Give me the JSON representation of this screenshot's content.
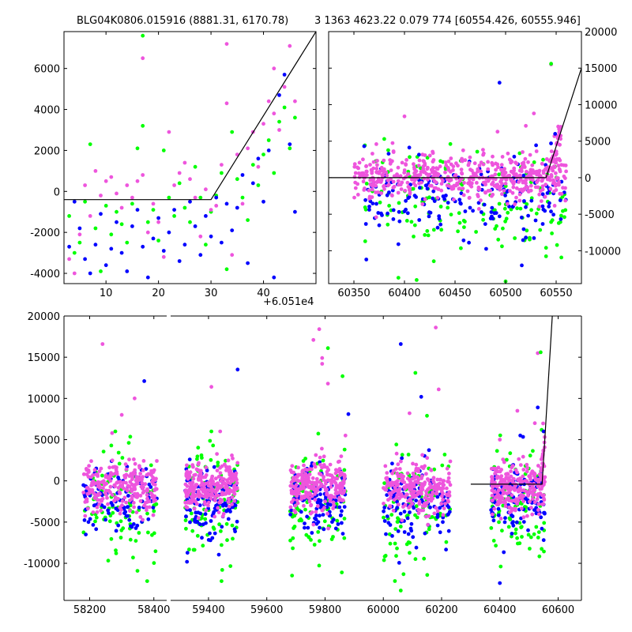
{
  "figure": {
    "title_left": "BLG04K0806.015916 (8881.31, 6170.78)",
    "title_right": "3 1363 4623.22 0.079 774 [60554.426, 60555.946]"
  },
  "colors": {
    "green": "#00ff00",
    "blue": "#0000ff",
    "pink": "#ee55dd",
    "line": "#000000",
    "axis": "#000000"
  },
  "chart_data": [
    {
      "panel": "top-left zoom",
      "type": "scatter",
      "title": "",
      "xlabel": "",
      "ylabel": "",
      "x_offset_label": "+6.051e4",
      "xlim": [
        2,
        50
      ],
      "ylim": [
        -4500,
        7800
      ],
      "xticks": [
        10,
        20,
        30,
        40
      ],
      "yticks": [
        -4000,
        -2000,
        0,
        2000,
        4000,
        6000
      ],
      "ytick_side": "left",
      "series": [
        {
          "color": "green",
          "points": [
            [
              3,
              -1200
            ],
            [
              4,
              -3000
            ],
            [
              5,
              -2500
            ],
            [
              6,
              -500
            ],
            [
              7,
              2300
            ],
            [
              8,
              -1800
            ],
            [
              9,
              -3900
            ],
            [
              10,
              -700
            ],
            [
              11,
              -2100
            ],
            [
              12,
              -1000
            ],
            [
              13,
              -1600
            ],
            [
              14,
              -2500
            ],
            [
              15,
              -600
            ],
            [
              16,
              2100
            ],
            [
              17,
              7600
            ],
            [
              17,
              3200
            ],
            [
              18,
              -1500
            ],
            [
              19,
              -900
            ],
            [
              20,
              -2400
            ],
            [
              21,
              2000
            ],
            [
              22,
              -300
            ],
            [
              23,
              -1200
            ],
            [
              24,
              400
            ],
            [
              25,
              -800
            ],
            [
              26,
              -1500
            ],
            [
              27,
              1200
            ],
            [
              28,
              -300
            ],
            [
              29,
              -2600
            ],
            [
              30,
              -1000
            ],
            [
              31,
              -200
            ],
            [
              32,
              900
            ],
            [
              33,
              -3800
            ],
            [
              34,
              2900
            ],
            [
              35,
              600
            ],
            [
              36,
              -300
            ],
            [
              37,
              -1400
            ],
            [
              38,
              1300
            ],
            [
              39,
              300
            ],
            [
              40,
              1800
            ],
            [
              41,
              2500
            ],
            [
              42,
              900
            ],
            [
              43,
              3400
            ],
            [
              44,
              4100
            ],
            [
              45,
              2100
            ],
            [
              46,
              3600
            ]
          ]
        },
        {
          "color": "blue",
          "points": [
            [
              3,
              -2700
            ],
            [
              4,
              -500
            ],
            [
              5,
              -1800
            ],
            [
              6,
              -3300
            ],
            [
              7,
              -4000
            ],
            [
              8,
              -2600
            ],
            [
              9,
              -1100
            ],
            [
              10,
              -3600
            ],
            [
              11,
              -2800
            ],
            [
              12,
              -1500
            ],
            [
              13,
              -3000
            ],
            [
              14,
              -3900
            ],
            [
              15,
              -1700
            ],
            [
              16,
              -900
            ],
            [
              17,
              -2700
            ],
            [
              18,
              -4200
            ],
            [
              19,
              -2300
            ],
            [
              20,
              -1300
            ],
            [
              21,
              -2900
            ],
            [
              22,
              -2000
            ],
            [
              23,
              -900
            ],
            [
              24,
              -3400
            ],
            [
              25,
              -2600
            ],
            [
              26,
              -500
            ],
            [
              27,
              -1700
            ],
            [
              28,
              -3100
            ],
            [
              29,
              -1200
            ],
            [
              30,
              -2200
            ],
            [
              31,
              -300
            ],
            [
              32,
              -2500
            ],
            [
              33,
              -600
            ],
            [
              34,
              -1900
            ],
            [
              35,
              -800
            ],
            [
              36,
              800
            ],
            [
              37,
              -3500
            ],
            [
              38,
              400
            ],
            [
              39,
              1600
            ],
            [
              40,
              -500
            ],
            [
              41,
              2000
            ],
            [
              42,
              -4200
            ],
            [
              43,
              4700
            ],
            [
              44,
              5700
            ],
            [
              45,
              2300
            ],
            [
              46,
              -1000
            ]
          ]
        },
        {
          "color": "pink",
          "points": [
            [
              3,
              -3300
            ],
            [
              4,
              -4000
            ],
            [
              5,
              -2100
            ],
            [
              6,
              300
            ],
            [
              7,
              -1200
            ],
            [
              8,
              1000
            ],
            [
              9,
              -200
            ],
            [
              10,
              500
            ],
            [
              11,
              700
            ],
            [
              12,
              -100
            ],
            [
              13,
              -800
            ],
            [
              14,
              300
            ],
            [
              15,
              -300
            ],
            [
              16,
              500
            ],
            [
              17,
              6500
            ],
            [
              17,
              800
            ],
            [
              18,
              -2000
            ],
            [
              19,
              -600
            ],
            [
              20,
              -1500
            ],
            [
              21,
              -3200
            ],
            [
              22,
              2900
            ],
            [
              23,
              300
            ],
            [
              24,
              900
            ],
            [
              25,
              1400
            ],
            [
              26,
              600
            ],
            [
              27,
              -300
            ],
            [
              28,
              -2200
            ],
            [
              29,
              100
            ],
            [
              30,
              -900
            ],
            [
              31,
              -700
            ],
            [
              32,
              1300
            ],
            [
              33,
              4300
            ],
            [
              34,
              -3100
            ],
            [
              35,
              1800
            ],
            [
              36,
              -600
            ],
            [
              37,
              2100
            ],
            [
              38,
              2900
            ],
            [
              39,
              1200
            ],
            [
              40,
              3300
            ],
            [
              41,
              4400
            ],
            [
              42,
              3800
            ],
            [
              43,
              3000
            ],
            [
              44,
              5100
            ],
            [
              45,
              7100
            ],
            [
              46,
              4400
            ],
            [
              42,
              6000
            ],
            [
              33,
              7200
            ]
          ]
        }
      ],
      "model_line": [
        [
          2,
          -400
        ],
        [
          30,
          -400
        ],
        [
          50,
          7800
        ]
      ]
    },
    {
      "panel": "top-right zoom",
      "type": "scatter",
      "title": "",
      "xlabel": "",
      "ylabel": "",
      "xlim": [
        60325,
        60575
      ],
      "ylim": [
        -14500,
        20000
      ],
      "xticks": [
        60350,
        60400,
        60450,
        60500,
        60550
      ],
      "yticks": [
        -10000,
        -5000,
        0,
        5000,
        10000,
        15000,
        20000
      ],
      "ytick_side": "right",
      "ranges": [
        {
          "color": "green",
          "x": [
            60360,
            60560
          ],
          "center": -3000,
          "spread": 3500,
          "count": 150
        },
        {
          "color": "blue",
          "x": [
            60360,
            60560
          ],
          "center": -2500,
          "spread": 2500,
          "count": 180
        },
        {
          "color": "pink",
          "x": [
            60350,
            60560
          ],
          "center": 0,
          "spread": 1500,
          "count": 520
        }
      ],
      "outliers": [
        {
          "color": "pink",
          "points": [
            [
              60545,
              15500
            ],
            [
              60528,
              8800
            ],
            [
              60400,
              8400
            ],
            [
              60520,
              7100
            ],
            [
              60552,
              7000
            ],
            [
              60492,
              6300
            ],
            [
              60372,
              -5400
            ],
            [
              60553,
              6200
            ]
          ]
        },
        {
          "color": "green",
          "points": [
            [
              60545,
              15600
            ],
            [
              60412,
              -14000
            ],
            [
              60500,
              -14200
            ],
            [
              60394,
              -13700
            ],
            [
              60555,
              -5200
            ],
            [
              60540,
              -9600
            ],
            [
              60380,
              5300
            ]
          ]
        },
        {
          "color": "blue",
          "points": [
            [
              60494,
              13000
            ],
            [
              60394,
              -9100
            ],
            [
              60549,
              6000
            ],
            [
              60516,
              -12000
            ],
            [
              60520,
              -8200
            ]
          ]
        }
      ],
      "model_line": [
        [
          60325,
          0
        ],
        [
          60540,
          0
        ],
        [
          60575,
          15000
        ]
      ]
    },
    {
      "panel": "bottom full",
      "type": "scatter",
      "title": "",
      "xlabel": "",
      "ylabel": "",
      "broken_x_axis": true,
      "segments": [
        {
          "xlim": [
            58120,
            58440
          ],
          "xticks": [
            58200,
            58400
          ]
        },
        {
          "xlim": [
            59270,
            60680
          ],
          "xticks": [
            59400,
            59600,
            59800,
            60000,
            60200,
            60400,
            60600
          ]
        }
      ],
      "ylim": [
        -14500,
        20000
      ],
      "yticks": [
        -10000,
        -5000,
        0,
        5000,
        10000,
        15000,
        20000
      ],
      "ytick_side": "left",
      "seasons": [
        [
          58180,
          58410
        ],
        [
          59320,
          59500
        ],
        [
          59680,
          59870
        ],
        [
          60000,
          60230
        ],
        [
          60370,
          60555
        ]
      ],
      "ranges": [
        {
          "color": "green",
          "center": -3000,
          "spread": 3500,
          "count": 90
        },
        {
          "color": "blue",
          "center": -2500,
          "spread": 2200,
          "count": 110
        },
        {
          "color": "pink",
          "center": -800,
          "spread": 1500,
          "count": 240
        }
      ],
      "outliers": [
        {
          "color": "pink",
          "points": [
            [
              58240,
              16600
            ],
            [
              58340,
              10000
            ],
            [
              58300,
              8000
            ],
            [
              58270,
              5800
            ],
            [
              59410,
              11400
            ],
            [
              59440,
              6000
            ],
            [
              59780,
              18400
            ],
            [
              59760,
              17100
            ],
            [
              59790,
              14900
            ],
            [
              59790,
              14200
            ],
            [
              59810,
              11800
            ],
            [
              59870,
              5500
            ],
            [
              60180,
              18600
            ],
            [
              60190,
              11100
            ],
            [
              60090,
              8200
            ],
            [
              60460,
              8500
            ],
            [
              60520,
              7000
            ],
            [
              60530,
              15500
            ],
            [
              60400,
              5000
            ]
          ]
        },
        {
          "color": "blue",
          "points": [
            [
              58370,
              12100
            ],
            [
              59500,
              13500
            ],
            [
              59880,
              8100
            ],
            [
              60060,
              16600
            ],
            [
              60130,
              10200
            ],
            [
              60530,
              8900
            ],
            [
              60550,
              6000
            ],
            [
              60470,
              5500
            ],
            [
              60400,
              -12400
            ]
          ]
        },
        {
          "color": "green",
          "points": [
            [
              59810,
              16100
            ],
            [
              60110,
              13100
            ],
            [
              60540,
              15600
            ],
            [
              60150,
              7900
            ],
            [
              59860,
              12700
            ],
            [
              58280,
              6000
            ],
            [
              59410,
              6000
            ],
            [
              60060,
              -13300
            ]
          ]
        }
      ],
      "model_line": [
        [
          60300,
          -400
        ],
        [
          60545,
          -400
        ],
        [
          60580,
          20000
        ]
      ]
    }
  ]
}
